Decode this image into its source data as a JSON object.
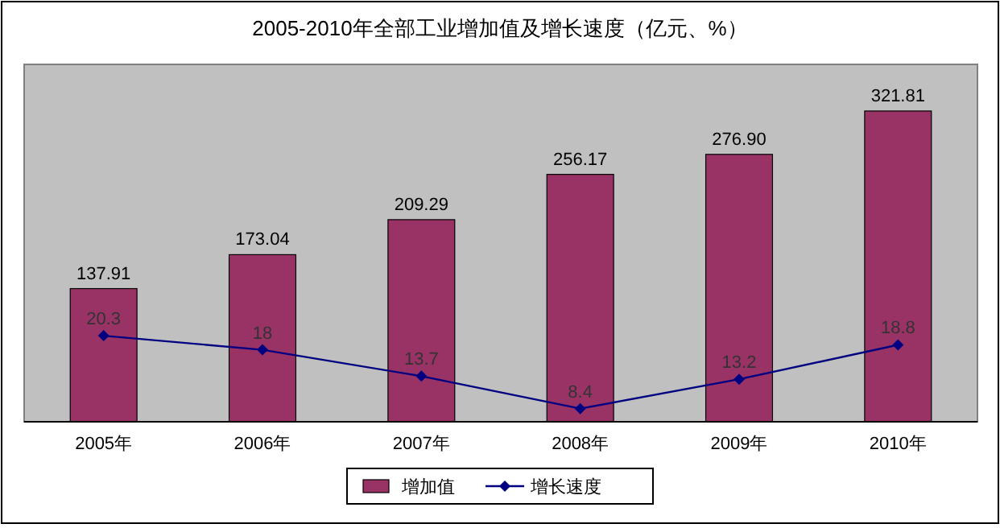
{
  "chart_data": {
    "type": "bar",
    "title": "2005-2010年全部工业增加值及增长速度（亿元、%）",
    "categories": [
      "2005年",
      "2006年",
      "2007年",
      "2008年",
      "2009年",
      "2010年"
    ],
    "series": [
      {
        "name": "增加值",
        "color": "#993366",
        "values": [
          137.91,
          173.04,
          209.29,
          256.17,
          276.9,
          321.81
        ],
        "value_labels": [
          "137.91",
          "173.04",
          "209.29",
          "256.17",
          "276.90",
          "321.81"
        ]
      },
      {
        "name": "增长速度",
        "type": "line",
        "axis": "y2",
        "color": "#000080",
        "values": [
          20.3,
          18,
          13.7,
          8.4,
          13.2,
          18.8
        ]
      }
    ],
    "data_labels": true,
    "marker": "diamond",
    "legend": "bottom",
    "tick_labels": "x"
  }
}
